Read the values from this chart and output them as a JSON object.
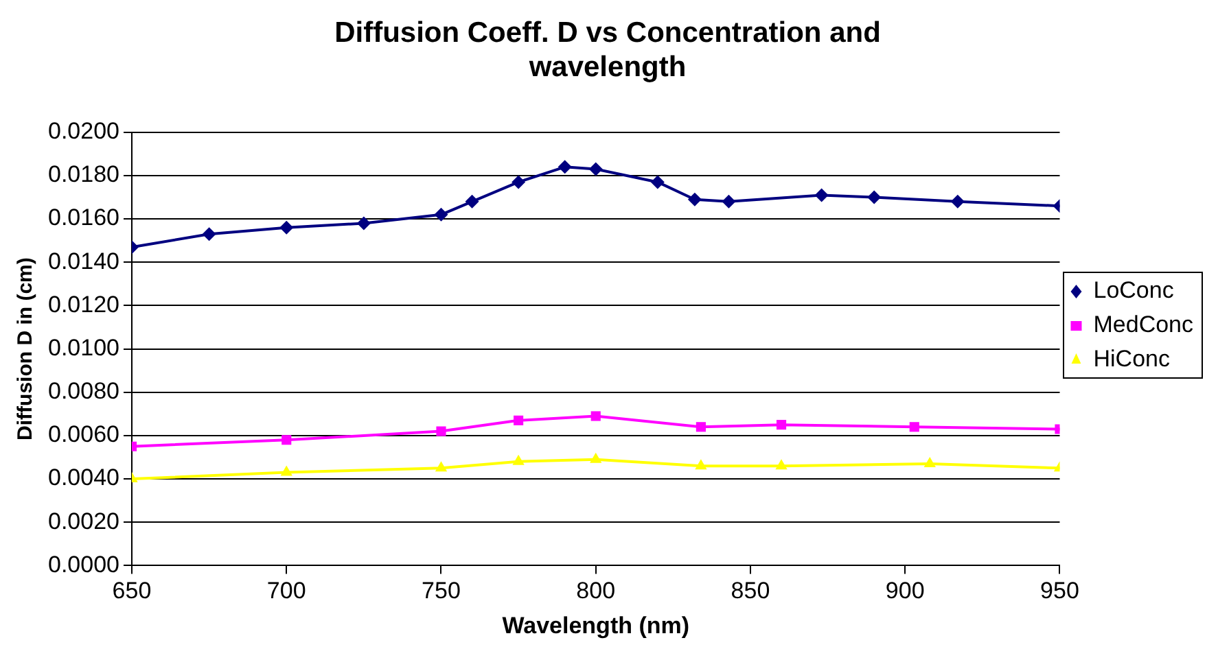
{
  "chart_data": {
    "type": "line",
    "title": "Diffusion Coeff. D vs Concentration and wavelength",
    "xlabel": "Wavelength (nm)",
    "ylabel": "Diffusion D in (cm)",
    "xlim": [
      650,
      950
    ],
    "xticks": [
      650,
      700,
      750,
      800,
      850,
      900,
      950
    ],
    "ylim": [
      0,
      0.02
    ],
    "yticks": [
      {
        "value": 0,
        "label": "0.0000"
      },
      {
        "value": 0.002,
        "label": "0.0020"
      },
      {
        "value": 0.004,
        "label": "0.0040"
      },
      {
        "value": 0.006,
        "label": "0.0060"
      },
      {
        "value": 0.008,
        "label": "0.0080"
      },
      {
        "value": 0.01,
        "label": "0.0100"
      },
      {
        "value": 0.012,
        "label": "0.0120"
      },
      {
        "value": 0.014,
        "label": "0.0140"
      },
      {
        "value": 0.016,
        "label": "0.0160"
      },
      {
        "value": 0.018,
        "label": "0.0180"
      },
      {
        "value": 0.02,
        "label": "0.0200"
      }
    ],
    "grid": "y",
    "legend": "right",
    "series": [
      {
        "name": "LoConc",
        "color": "#000080",
        "marker": "diamond",
        "x": [
          650,
          675,
          700,
          725,
          750,
          760,
          775,
          790,
          800,
          820,
          832,
          843,
          873,
          890,
          917,
          950
        ],
        "values": [
          0.0147,
          0.0153,
          0.0156,
          0.0158,
          0.0162,
          0.0168,
          0.0177,
          0.0184,
          0.0183,
          0.0177,
          0.0169,
          0.0168,
          0.0171,
          0.017,
          0.0168,
          0.0166
        ]
      },
      {
        "name": "MedConc",
        "color": "#ff00ff",
        "marker": "square",
        "x": [
          650,
          700,
          750,
          775,
          800,
          834,
          860,
          903,
          950
        ],
        "values": [
          0.0055,
          0.0058,
          0.0062,
          0.0067,
          0.0069,
          0.0064,
          0.0065,
          0.0064,
          0.0063
        ]
      },
      {
        "name": "HiConc",
        "color": "#ffff00",
        "marker": "triangle",
        "x": [
          650,
          700,
          750,
          775,
          800,
          834,
          860,
          908,
          950
        ],
        "values": [
          0.004,
          0.0043,
          0.0045,
          0.0048,
          0.0049,
          0.0046,
          0.0046,
          0.0047,
          0.0045
        ]
      }
    ]
  }
}
